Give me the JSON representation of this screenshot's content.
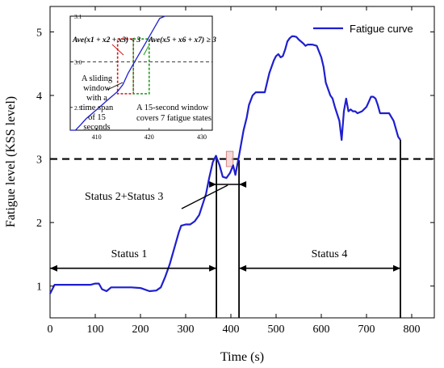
{
  "chart_data": {
    "type": "line",
    "xlabel": "Time (s)",
    "ylabel": "Fatigue level (KSS level)",
    "xlim": [
      0,
      850
    ],
    "ylim": [
      0.5,
      5.4
    ],
    "x_ticks": [
      "0",
      "100",
      "200",
      "300",
      "400",
      "500",
      "600",
      "700",
      "800"
    ],
    "y_ticks": [
      "1",
      "2",
      "3",
      "4",
      "5"
    ],
    "threshold_y": 3,
    "legend_position": "top-right",
    "grid": false,
    "series": [
      {
        "name": "Fatigue curve",
        "color": "#1f1fcf",
        "x": [
          0,
          10,
          20,
          50,
          90,
          100,
          108,
          115,
          125,
          135,
          150,
          180,
          200,
          220,
          235,
          245,
          255,
          265,
          275,
          285,
          290,
          300,
          310,
          320,
          330,
          345,
          352,
          360,
          367,
          375,
          382,
          390,
          398,
          405,
          410,
          418,
          428,
          435,
          440,
          448,
          455,
          460,
          465,
          470,
          475,
          480,
          485,
          490,
          495,
          500,
          505,
          510,
          515,
          520,
          525,
          530,
          535,
          540,
          545,
          550,
          560,
          565,
          570,
          575,
          580,
          590,
          600,
          605,
          610,
          620,
          625,
          630,
          640,
          645,
          650,
          655,
          660,
          665,
          670,
          675,
          680,
          690,
          700,
          705,
          710,
          715,
          720,
          725,
          730,
          740,
          745,
          750,
          760,
          770,
          775
        ],
        "y": [
          0.88,
          1.02,
          1.02,
          1.02,
          1.02,
          1.04,
          1.04,
          0.95,
          0.92,
          0.98,
          0.98,
          0.98,
          0.97,
          0.92,
          0.93,
          0.98,
          1.15,
          1.35,
          1.6,
          1.85,
          1.95,
          1.97,
          1.97,
          2.02,
          2.12,
          2.45,
          2.7,
          2.95,
          3.05,
          2.9,
          2.72,
          2.7,
          2.78,
          2.9,
          2.75,
          3.05,
          3.45,
          3.65,
          3.85,
          4.0,
          4.05,
          4.05,
          4.05,
          4.05,
          4.05,
          4.2,
          4.35,
          4.45,
          4.55,
          4.62,
          4.65,
          4.6,
          4.62,
          4.72,
          4.85,
          4.9,
          4.93,
          4.93,
          4.92,
          4.88,
          4.82,
          4.78,
          4.8,
          4.8,
          4.8,
          4.78,
          4.6,
          4.45,
          4.2,
          4.0,
          3.95,
          3.82,
          3.6,
          3.3,
          3.75,
          3.95,
          3.75,
          3.78,
          3.75,
          3.75,
          3.72,
          3.75,
          3.82,
          3.9,
          3.98,
          3.98,
          3.95,
          3.85,
          3.72,
          3.72,
          3.72,
          3.72,
          3.6,
          3.35,
          3.3
        ]
      }
    ],
    "annotations": {
      "status1": {
        "label": "Status 1",
        "x_start": 0,
        "x_end": 368,
        "y": 1.28
      },
      "status4": {
        "label": "Status 4",
        "x_start": 418,
        "x_end": 775,
        "y": 1.28
      },
      "status23": {
        "label": "Status 2+Status 3",
        "x": 393,
        "y": 2.6,
        "arrow_from_x": 330,
        "arrow_from_y": 2.5
      },
      "vertical_markers_x": [
        368,
        418,
        775
      ],
      "highlight_box": {
        "x_from": 390,
        "x_to": 405,
        "y_from": 2.88,
        "y_to": 3.12
      }
    },
    "inset": {
      "xlim": [
        405,
        432
      ],
      "ylim": [
        2.85,
        3.1
      ],
      "x_ticks": [
        "410",
        "420",
        "430"
      ],
      "y_ticks": [
        "3.1",
        "3.0",
        "2.9"
      ],
      "threshold_y": 3.0,
      "curve": {
        "x": [
          405,
          406,
          407,
          408,
          409,
          410,
          411,
          412,
          413,
          414,
          415,
          416,
          417,
          418,
          419,
          420,
          421,
          422,
          423
        ],
        "y": [
          2.835,
          2.85,
          2.862,
          2.875,
          2.885,
          2.895,
          2.905,
          2.915,
          2.925,
          2.935,
          2.95,
          2.975,
          2.995,
          3.015,
          3.035,
          3.055,
          3.075,
          3.095,
          3.115
        ]
      },
      "red_window": {
        "x_from": 414,
        "x_to": 417,
        "y_from": 2.93,
        "y_to": 3.05
      },
      "green_window": {
        "x_from": 417,
        "x_to": 420,
        "y_from": 2.93,
        "y_to": 3.05
      },
      "formula_red": "Ave(x1 + x2 + x3) < 3",
      "formula_green": "Ave(x5 + x6 + x7) ≥ 3",
      "note_sliding": [
        "A sliding",
        "window",
        "with a",
        "time span",
        "of 15",
        "seconds"
      ],
      "note_covers": [
        "A 15-second window",
        "covers 7 fatigue states"
      ]
    }
  }
}
